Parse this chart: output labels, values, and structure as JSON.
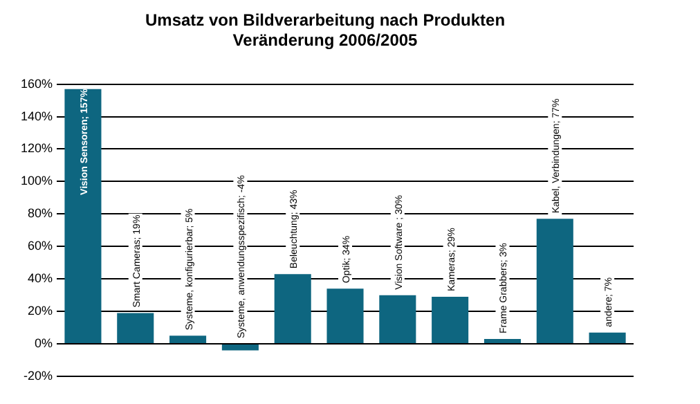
{
  "chart_data": {
    "type": "bar",
    "title": "Umsatz von Bildverarbeitung nach Produkten",
    "subtitle": "Veränderung 2006/2005",
    "categories": [
      "Vision Sensoren; 157%",
      "Smart Cameras; 19%",
      "Systeme, konfigurierbar; 5%",
      "Systeme, anwendungsspezifisch; -4%",
      "Beleuchtung; 43%",
      "Optik; 34%",
      "Vision Software ; 30%",
      "Kameras; 29%",
      "Frame Grabbers; 3%",
      "Kabel, Verbindungen; 77%",
      "andere; 7%"
    ],
    "values": [
      157,
      19,
      5,
      -4,
      43,
      34,
      30,
      29,
      3,
      77,
      7
    ],
    "color": "#0e6680",
    "ylim": [
      -20,
      160
    ],
    "yticks": [
      {
        "value": -20,
        "label": "-20%"
      },
      {
        "value": 0,
        "label": "0%"
      },
      {
        "value": 20,
        "label": "20%"
      },
      {
        "value": 40,
        "label": "40%"
      },
      {
        "value": 60,
        "label": "60%"
      },
      {
        "value": 80,
        "label": "80%"
      },
      {
        "value": 100,
        "label": "100%"
      },
      {
        "value": 120,
        "label": "120%"
      },
      {
        "value": 140,
        "label": "140%"
      },
      {
        "value": 160,
        "label": "160%"
      }
    ],
    "grid": "y",
    "legend": false,
    "tick_labels": "y"
  }
}
